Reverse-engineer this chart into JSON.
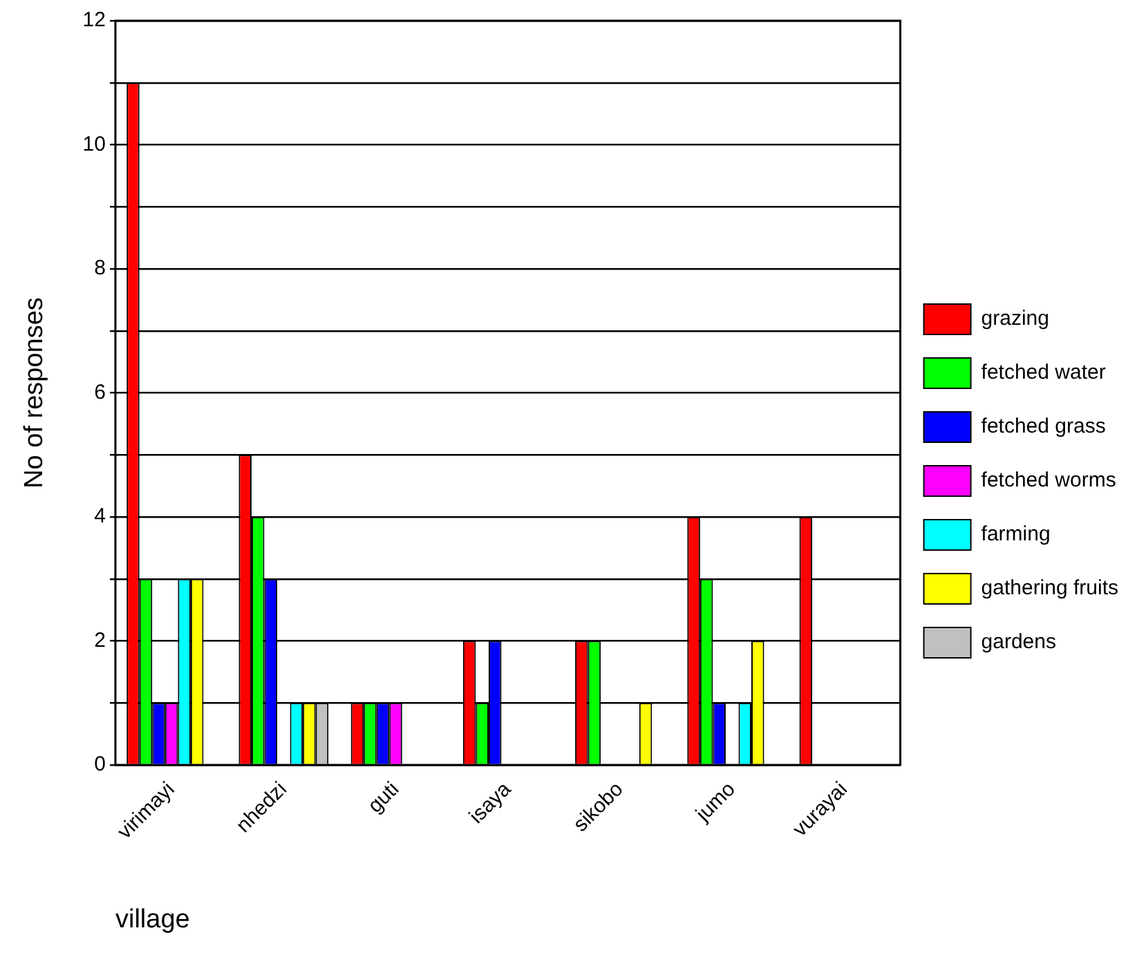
{
  "chart_data": {
    "type": "bar",
    "xlabel": "village",
    "ylabel": "No of responses",
    "categories": [
      "virimayi",
      "nhedzi",
      "guti",
      "isaya",
      "sikobo",
      "jumo",
      "vurayai"
    ],
    "series": [
      {
        "name": "grazing",
        "color": "#ff0000",
        "values": [
          11,
          5,
          1,
          2,
          2,
          4,
          4
        ]
      },
      {
        "name": "fetched water",
        "color": "#00ff00",
        "values": [
          3,
          4,
          1,
          1,
          2,
          3,
          0
        ]
      },
      {
        "name": "fetched grass",
        "color": "#0000ff",
        "values": [
          1,
          3,
          1,
          2,
          0,
          1,
          0
        ]
      },
      {
        "name": "fetched worms",
        "color": "#ff00ff",
        "values": [
          1,
          0,
          1,
          0,
          0,
          0,
          0
        ]
      },
      {
        "name": "farming",
        "color": "#00ffff",
        "values": [
          3,
          1,
          0,
          0,
          0,
          1,
          0
        ]
      },
      {
        "name": "gathering fruits",
        "color": "#ffff00",
        "values": [
          3,
          1,
          0,
          0,
          1,
          2,
          0
        ]
      },
      {
        "name": "gardens",
        "color": "#c0c0c0",
        "values": [
          0,
          1,
          0,
          0,
          0,
          0,
          0
        ]
      }
    ],
    "ylim": [
      0,
      12
    ],
    "yticks": [
      0,
      {
        "value": 1,
        "label": null
      },
      2,
      {
        "value": 3,
        "label": null
      },
      4,
      {
        "value": 5,
        "label": null
      },
      6,
      {
        "value": 7,
        "label": null
      },
      8,
      {
        "value": 9,
        "label": null
      },
      10,
      {
        "value": 11,
        "label": null
      },
      12
    ],
    "grid": "y",
    "legend": "right"
  }
}
